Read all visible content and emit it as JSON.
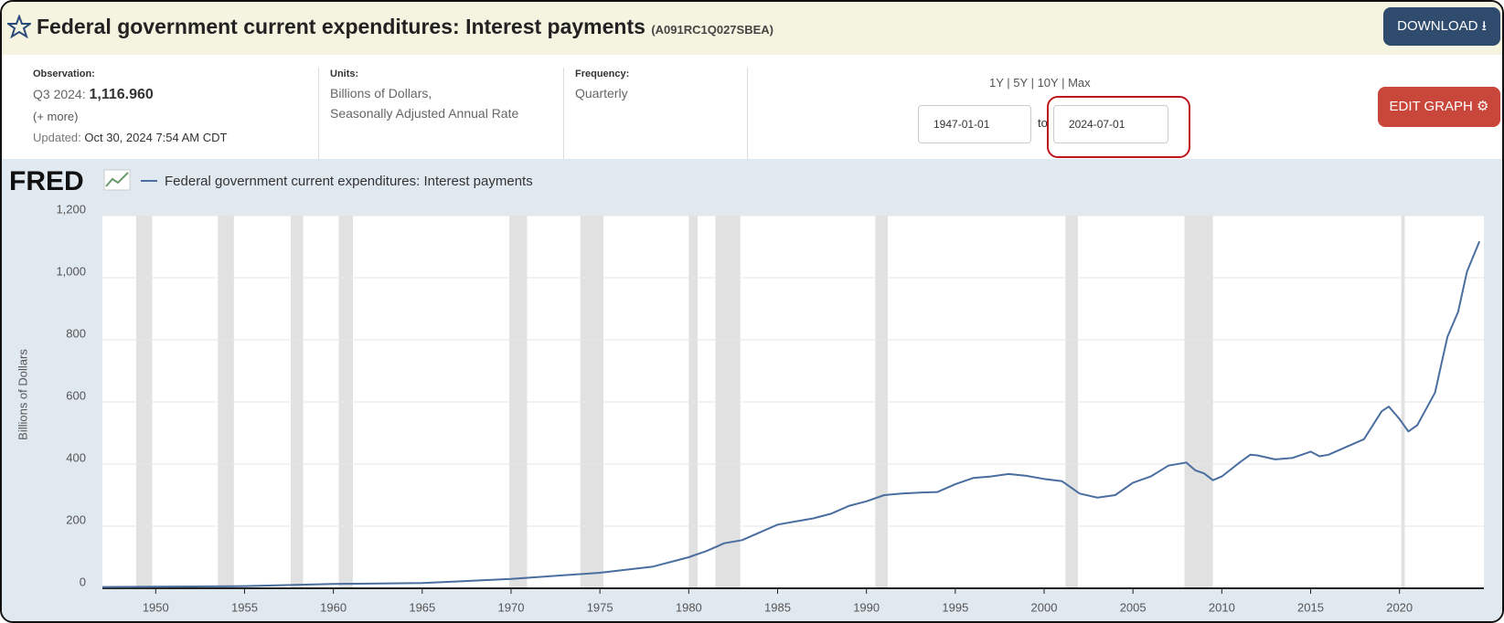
{
  "header": {
    "title": "Federal government current expenditures: Interest payments",
    "series_id": "(A091RC1Q027SBEA)",
    "download": "DOWNLOAD"
  },
  "info": {
    "observation_label": "Observation:",
    "period": "Q3 2024:",
    "value": "1,116.960",
    "more": "(+ more)",
    "updated_label": "Updated:",
    "updated": "Oct 30, 2024 7:54 AM CDT",
    "units_label": "Units:",
    "units": [
      "Billions of Dollars,",
      "Seasonally Adjusted Annual Rate"
    ],
    "frequency_label": "Frequency:",
    "frequency": "Quarterly"
  },
  "range": {
    "links": [
      "1Y",
      "5Y",
      "10Y",
      "Max"
    ],
    "start": "1947-01-01",
    "to": "to",
    "end": "2024-07-01"
  },
  "edit": "EDIT GRAPH",
  "logo": "FRED",
  "chart_data": {
    "type": "line",
    "y_label": "Billions of Dollars",
    "x": [
      1947,
      1950,
      1955,
      1960,
      1965,
      1970,
      1975,
      1978,
      1980,
      1981,
      1982,
      1983,
      1984,
      1985,
      1986,
      1987,
      1988,
      1989,
      1990,
      1991,
      1992,
      1993,
      1994,
      1995,
      1996,
      1997,
      1998,
      1999,
      2000,
      2001,
      2002,
      2003,
      2004,
      2005,
      2006,
      2007,
      2008,
      2008.5,
      2009,
      2009.5,
      2010,
      2011,
      2011.6,
      2012,
      2013,
      2014,
      2015,
      2015.5,
      2016,
      2017,
      2018,
      2019,
      2019.4,
      2020,
      2020.5,
      2021,
      2022,
      2022.7,
      2023.3,
      2023.8,
      2024.5
    ],
    "series": [
      {
        "name": "Federal government current expenditures: Interest payments",
        "color": "#4a6e9f",
        "values": [
          4,
          5,
          7,
          14,
          17,
          30,
          50,
          70,
          100,
          120,
          145,
          155,
          180,
          205,
          215,
          225,
          240,
          265,
          280,
          300,
          305,
          308,
          310,
          335,
          355,
          360,
          368,
          362,
          352,
          345,
          305,
          292,
          300,
          340,
          360,
          395,
          405,
          380,
          370,
          348,
          360,
          405,
          430,
          428,
          415,
          420,
          440,
          425,
          430,
          455,
          480,
          570,
          585,
          545,
          505,
          525,
          630,
          810,
          890,
          1020,
          1116.96
        ]
      }
    ],
    "recessions": [
      [
        1948.9,
        1949.8
      ],
      [
        1953.5,
        1954.4
      ],
      [
        1957.6,
        1958.3
      ],
      [
        1960.3,
        1961.1
      ],
      [
        1969.9,
        1970.9
      ],
      [
        1973.9,
        1975.2
      ],
      [
        1980.0,
        1980.5
      ],
      [
        1981.5,
        1982.9
      ],
      [
        1990.5,
        1991.2
      ],
      [
        2001.2,
        2001.9
      ],
      [
        2007.9,
        2009.5
      ],
      [
        2020.1,
        2020.3
      ]
    ],
    "recession_color": "#e1e1e1",
    "xlim": [
      1947,
      2024.75
    ],
    "ylim": [
      0,
      1200
    ],
    "xticks": [
      1950,
      1955,
      1960,
      1965,
      1970,
      1975,
      1980,
      1985,
      1990,
      1995,
      2000,
      2005,
      2010,
      2015,
      2020
    ],
    "yticks": [
      0,
      200,
      400,
      600,
      800,
      {
        "value": 1000,
        "label": "1,000"
      },
      {
        "value": 1200,
        "label": "1,200"
      }
    ],
    "grid": true
  }
}
